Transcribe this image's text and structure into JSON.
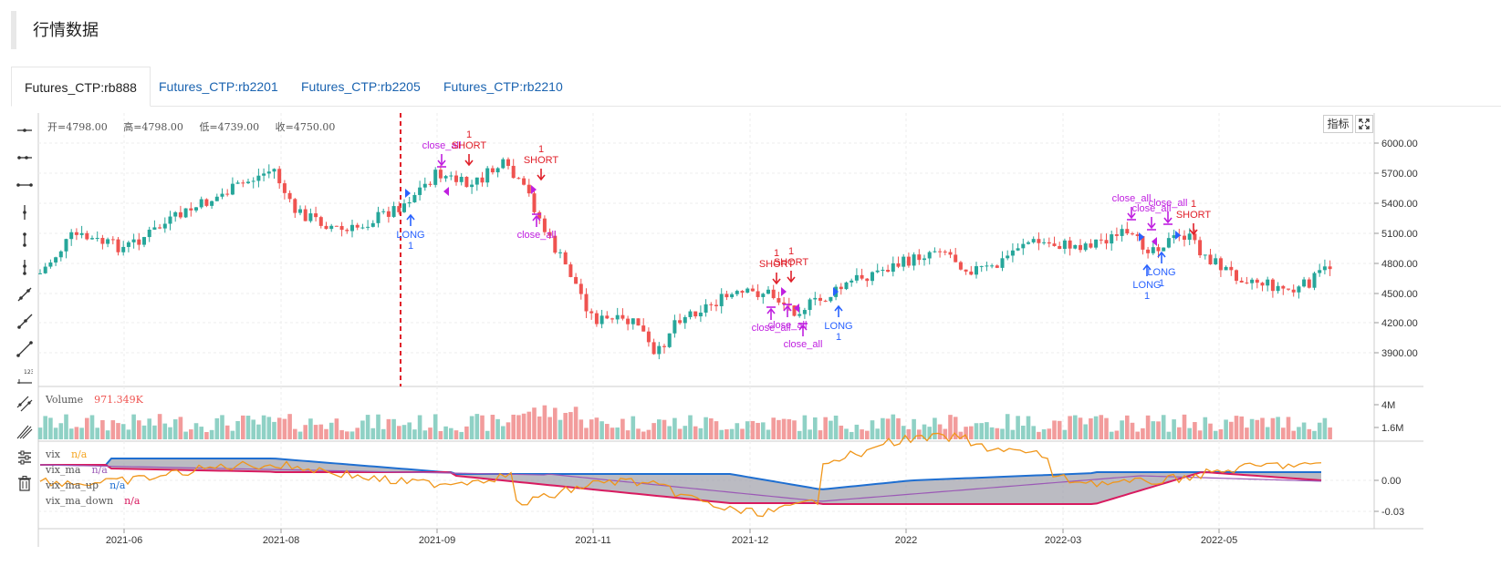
{
  "page": {
    "title": "行情数据"
  },
  "tabs": [
    {
      "label": "Futures_CTP:rb888",
      "active": true
    },
    {
      "label": "Futures_CTP:rb2201",
      "active": false
    },
    {
      "label": "Futures_CTP:rb2205",
      "active": false
    },
    {
      "label": "Futures_CTP:rb2210",
      "active": false
    }
  ],
  "ohlc": {
    "open": "开=4798.00",
    "high": "高=4798.00",
    "low": "低=4739.00",
    "close": "收=4750.00"
  },
  "buttons": {
    "indicator": "指标"
  },
  "price_axis": [
    "6000.00",
    "5700.00",
    "5400.00",
    "5100.00",
    "4800.00",
    "4500.00",
    "4200.00",
    "3900.00"
  ],
  "volume_axis": [
    "4M",
    "1.6M"
  ],
  "vix_axis": [
    "0.00",
    "-0.03"
  ],
  "time_axis": [
    "2021-06",
    "2021-08",
    "2021-09",
    "2021-11",
    "2021-12",
    "2022",
    "2022-03",
    "2022-05"
  ],
  "volume_legend": {
    "name": "Volume",
    "value": "971.349K"
  },
  "vix_legend": [
    {
      "name": "vix",
      "value": "n/a",
      "color": "#f5a623"
    },
    {
      "name": "vix_ma",
      "value": "n/a",
      "color": "#9b59b6"
    },
    {
      "name": "vix_ma_up",
      "value": "n/a",
      "color": "#1f6fd1"
    },
    {
      "name": "vix_ma_down",
      "value": "n/a",
      "color": "#d81b60"
    }
  ],
  "signals": {
    "long": "LONG",
    "short": "SHORT",
    "close_all": "close_all",
    "qty": "1"
  },
  "colors": {
    "up": "#26a69a",
    "down": "#ef5350",
    "vol_up": "#8fd1c5",
    "vol_down": "#f29c9c",
    "long": "#2962ff",
    "short": "#e0202a",
    "close": "#c020e0"
  },
  "icons": [
    "horizontal-line-icon",
    "horizontal-ray-icon",
    "horizontal-segment-icon",
    "vertical-line-icon",
    "vertical-segment-icon",
    "vertical-ray-icon",
    "trend-line-icon",
    "ray-icon",
    "extended-line-icon",
    "price-label-icon",
    "parallel-channel-icon",
    "pitchfork-icon",
    "settings-icon",
    "trash-icon"
  ]
}
